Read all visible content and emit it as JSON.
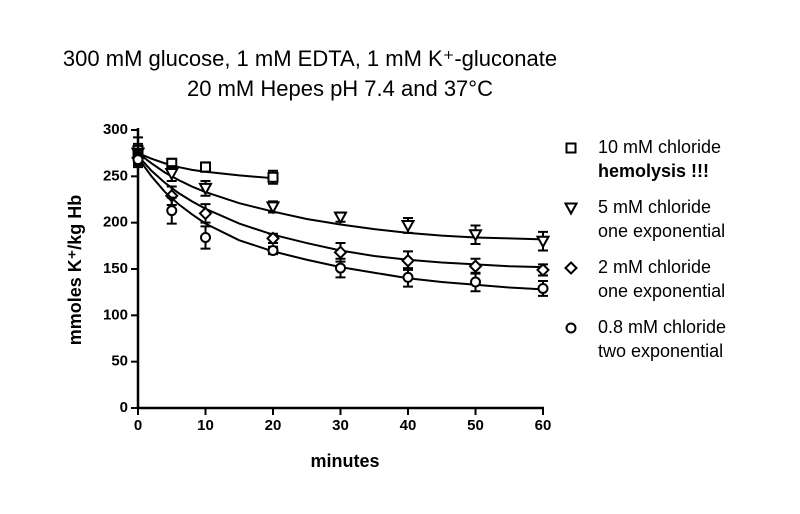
{
  "chart_data": {
    "type": "scatter",
    "title_lines": [
      "300 mM glucose, 1 mM EDTA, 1 mM K⁺-gluconate",
      "20 mM Hepes pH 7.4 and 37°C"
    ],
    "x_label": "minutes",
    "y_label": "mmoles K⁺/kg Hb",
    "xlim": [
      0,
      60
    ],
    "xticks": [
      0,
      10,
      20,
      30,
      40,
      50,
      60
    ],
    "ylim": [
      0,
      300
    ],
    "yticks": [
      0,
      50,
      100,
      150,
      200,
      250,
      300
    ],
    "fit_x": [
      0,
      2,
      4,
      6,
      8,
      10,
      15,
      20,
      25,
      30,
      35,
      40,
      45,
      50,
      55,
      60
    ],
    "series": [
      {
        "name": "10 mM chloride",
        "note": "hemolysis !!!",
        "marker": "square",
        "color": "#000000",
        "x": [
          0,
          5,
          10,
          20
        ],
        "values": [
          278,
          264,
          260,
          249
        ],
        "errors": [
          14,
          5,
          5,
          7
        ],
        "fit": [
          275,
          269,
          264,
          260,
          257,
          255,
          251,
          248,
          null,
          null,
          null,
          null,
          null,
          null,
          null,
          null
        ]
      },
      {
        "name": "5 mM chloride",
        "note": "one exponential",
        "marker": "triangle",
        "color": "#000000",
        "x": [
          0,
          5,
          10,
          20,
          30,
          40,
          50,
          60
        ],
        "values": [
          275,
          253,
          237,
          217,
          206,
          197,
          187,
          180
        ],
        "errors": [
          10,
          8,
          8,
          6,
          5,
          8,
          10,
          10
        ],
        "fit": [
          275,
          264,
          254,
          246,
          239,
          233,
          221,
          212,
          204,
          198,
          193,
          189,
          186,
          184,
          183,
          182
        ]
      },
      {
        "name": "2 mM chloride",
        "note": "one exponential",
        "marker": "diamond",
        "color": "#000000",
        "x": [
          0,
          5,
          10,
          20,
          30,
          40,
          50,
          60
        ],
        "values": [
          270,
          229,
          210,
          183,
          168,
          159,
          153,
          149
        ],
        "errors": [
          8,
          10,
          10,
          5,
          10,
          10,
          8,
          6
        ],
        "fit": [
          272,
          256,
          243,
          232,
          223,
          215,
          199,
          187,
          178,
          170,
          164,
          160,
          157,
          155,
          153,
          152
        ]
      },
      {
        "name": "0.8 mM chloride",
        "note": "two exponential",
        "marker": "circle",
        "color": "#000000",
        "x": [
          0,
          5,
          10,
          20,
          30,
          40,
          50,
          60
        ],
        "values": [
          268,
          213,
          184,
          170,
          151,
          141,
          136,
          129
        ],
        "errors": [
          8,
          14,
          12,
          4,
          10,
          10,
          10,
          8
        ],
        "fit": [
          270,
          250,
          233,
          220,
          209,
          199,
          181,
          169,
          160,
          152,
          146,
          140,
          136,
          133,
          130,
          128
        ]
      }
    ]
  }
}
